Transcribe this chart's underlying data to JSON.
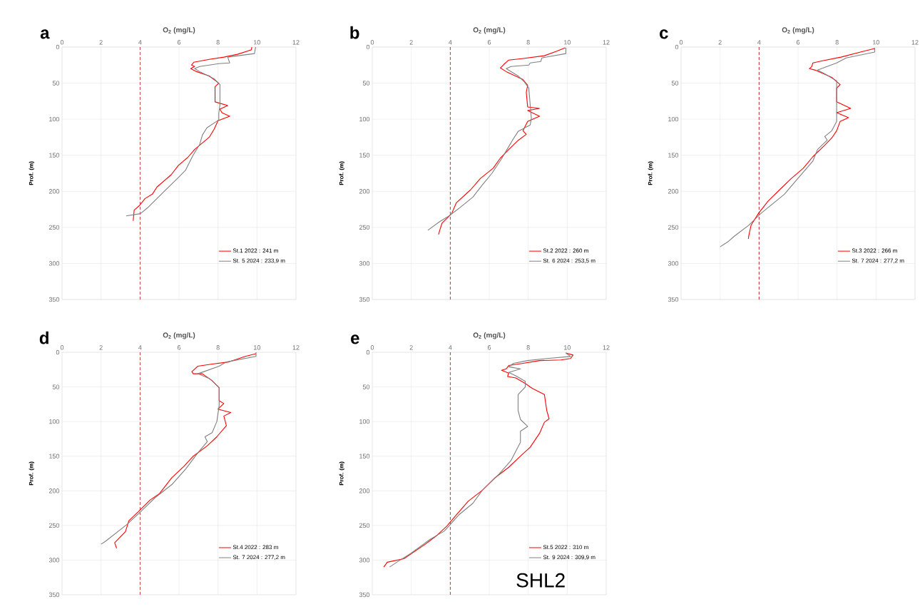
{
  "chart_data": [
    {
      "type": "line",
      "title": "a",
      "xlabel": "O$_{2}$ (mg/L)",
      "ylabel": "Prof. (m)",
      "xlim": [
        0,
        12
      ],
      "xticks": [
        0,
        2,
        4,
        6,
        8,
        10,
        12
      ],
      "ylim": [
        350,
        0
      ],
      "yticks": [
        0,
        50,
        100,
        150,
        200,
        250,
        300,
        350
      ],
      "grid": true,
      "legend": "bottom right",
      "ref_lines": [
        {
          "axis": "x",
          "value": 4,
          "color": "#c0282d",
          "line_style": "dashed"
        }
      ],
      "series": [
        {
          "name": "St.1 2022 : 241 m",
          "color": "#ff0000",
          "x": [
            9.74,
            9.7,
            9.0,
            8.3,
            7.55,
            6.76,
            6.64,
            6.8,
            6.6,
            6.9,
            7.55,
            8.04,
            7.85,
            7.85,
            8.5,
            8.1,
            8.2,
            8.6,
            8.0,
            7.8,
            7.55,
            6.8,
            6.45,
            5.97,
            5.6,
            4.87,
            4.63,
            4.26,
            3.96,
            3.7,
            3.65
          ],
          "values": [
            0,
            4,
            10,
            14,
            17,
            21,
            25,
            27,
            30,
            34,
            40,
            50,
            55,
            76,
            81,
            86,
            91,
            96,
            102,
            114,
            125,
            142,
            153,
            164,
            177,
            194,
            204,
            210,
            220,
            226,
            241
          ]
        },
        {
          "name": "St. 5 2024 : 233,9 m",
          "color": "#808080",
          "x": [
            9.93,
            9.87,
            8.5,
            8.6,
            8.04,
            7.06,
            6.8,
            7.06,
            7.8,
            8.1,
            8.1,
            8.04,
            8.04,
            7.43,
            7.2,
            7.06,
            6.7,
            6.33,
            5.85,
            5.24,
            4.38,
            4.02,
            3.29
          ],
          "values": [
            0,
            9,
            14,
            22,
            23,
            27,
            30,
            34,
            44,
            52,
            80,
            92,
            101,
            112,
            122,
            135,
            151,
            171,
            184,
            200,
            223,
            231,
            234
          ]
        }
      ]
    },
    {
      "type": "line",
      "title": "b",
      "xlabel": "O$_{2}$ (mg/L)",
      "ylabel": "Prof. (m)",
      "xlim": [
        0,
        12
      ],
      "xticks": [
        0,
        2,
        4,
        6,
        8,
        10,
        12
      ],
      "ylim": [
        350,
        0
      ],
      "yticks": [
        0,
        50,
        100,
        150,
        200,
        250,
        300,
        350
      ],
      "grid": true,
      "legend": "bottom right",
      "ref_lines": [
        {
          "axis": "x",
          "value": 4,
          "color": "#c0282d",
          "line_style": "dashed"
        }
      ],
      "series": [
        {
          "name": "St.2 2022 :  260 m",
          "color": "#ff0000",
          "x": [
            9.9,
            9.44,
            8.83,
            7.67,
            7.0,
            6.75,
            6.57,
            6.87,
            7.73,
            7.97,
            7.9,
            7.97,
            8.58,
            7.97,
            8.58,
            7.97,
            7.73,
            7.9,
            7.5,
            7.0,
            6.57,
            6.2,
            5.55,
            5.04,
            4.31,
            4.07,
            3.58,
            3.46,
            3.4
          ],
          "values": [
            1,
            6,
            12,
            16,
            18,
            24,
            29,
            34,
            45,
            53,
            63,
            83,
            85,
            88,
            96,
            103,
            116,
            121,
            129,
            142,
            154,
            168,
            182,
            198,
            216,
            231,
            244,
            254,
            260
          ]
        },
        {
          "name": "St. 6 2024 : 253,5 m",
          "color": "#808080",
          "x": [
            9.93,
            9.93,
            8.7,
            8.64,
            8.1,
            8.03,
            7.12,
            6.87,
            7.48,
            7.79,
            8.03,
            8.1,
            8.16,
            8.1,
            7.48,
            7.24,
            6.87,
            6.63,
            6.14,
            5.65,
            5.16,
            4.43,
            3.94,
            3.46,
            2.85
          ],
          "values": [
            1,
            9,
            15,
            20,
            22,
            25,
            27,
            30,
            40,
            48,
            57,
            80,
            99,
            108,
            117,
            127,
            144,
            155,
            175,
            191,
            208,
            224,
            234,
            242,
            254
          ]
        }
      ]
    },
    {
      "type": "line",
      "title": "c",
      "xlabel": "O$_{2}$ (mg/L)",
      "ylabel": "Prof. (m)",
      "xlim": [
        0,
        12
      ],
      "xticks": [
        0,
        2,
        4,
        6,
        8,
        10,
        12
      ],
      "ylim": [
        350,
        0
      ],
      "yticks": [
        0,
        50,
        100,
        150,
        200,
        250,
        300,
        350
      ],
      "grid": true,
      "legend": "bottom right",
      "ref_lines": [
        {
          "axis": "x",
          "value": 4,
          "color": "#c0282d",
          "line_style": "dashed"
        }
      ],
      "series": [
        {
          "name": "St.3 2022 : 266 m",
          "color": "#ff0000",
          "x": [
            9.93,
            9.2,
            8.2,
            7.25,
            6.76,
            6.7,
            6.58,
            6.88,
            7.73,
            8.16,
            7.98,
            7.98,
            8.7,
            7.98,
            8.59,
            8.16,
            7.98,
            7.73,
            7.37,
            6.76,
            6.27,
            5.66,
            5.05,
            4.45,
            3.96,
            3.59,
            3.47,
            3.45
          ],
          "values": [
            2,
            7,
            14,
            19,
            22,
            27,
            30,
            32,
            42,
            52,
            57,
            76,
            85,
            91,
            98,
            103,
            116,
            126,
            136,
            152,
            168,
            182,
            198,
            214,
            231,
            247,
            262,
            266
          ]
        },
        {
          "name": "St. 7 2024 : 277,2 m",
          "color": "#808080",
          "x": [
            9.93,
            9.93,
            8.47,
            7.98,
            7.0,
            7.37,
            7.98,
            7.98,
            7.73,
            7.37,
            7.5,
            7.0,
            6.76,
            5.9,
            5.3,
            4.08,
            3.47,
            2.74,
            2.4,
            2.0
          ],
          "values": [
            1,
            7,
            15,
            22,
            32,
            37,
            47,
            103,
            116,
            124,
            129,
            142,
            158,
            185,
            204,
            231,
            247,
            262,
            270,
            277
          ]
        }
      ]
    },
    {
      "type": "line",
      "title": "d",
      "xlabel": "O$_{2}$ (mg/L)",
      "ylabel": "Prof. (m)",
      "xlim": [
        0,
        12
      ],
      "xticks": [
        0,
        2,
        4,
        6,
        8,
        10,
        12
      ],
      "ylim": [
        350,
        0
      ],
      "yticks": [
        0,
        50,
        100,
        150,
        200,
        250,
        300,
        350
      ],
      "grid": true,
      "legend": "bottom right",
      "ref_lines": [
        {
          "axis": "x",
          "value": 4,
          "color": "#c0282d",
          "line_style": "dashed"
        }
      ],
      "series": [
        {
          "name": "St.4 2022 : 283 m",
          "color": "#ff0000",
          "x": [
            9.95,
            9.4,
            8.55,
            7.7,
            6.97,
            6.66,
            6.73,
            7.2,
            7.7,
            8.06,
            8.06,
            8.3,
            8.0,
            8.66,
            8.3,
            8.43,
            7.94,
            7.45,
            6.73,
            6.24,
            5.63,
            5.0,
            4.53,
            3.92,
            3.43,
            3.25,
            2.7,
            2.8
          ],
          "values": [
            2,
            6,
            14,
            17,
            20,
            28,
            31,
            31,
            41,
            51,
            70,
            74,
            82,
            87,
            92,
            106,
            122,
            135,
            150,
            165,
            181,
            204,
            213,
            230,
            243,
            259,
            275,
            283
          ]
        },
        {
          "name": "St. 7 2024 : 277,2 m",
          "color": "#808080",
          "x": [
            9.95,
            9.95,
            8.43,
            8.06,
            6.97,
            7.57,
            8.06,
            8.06,
            7.94,
            7.7,
            7.33,
            7.45,
            6.97,
            6.36,
            5.63,
            4.77,
            4.04,
            3.31,
            2.22,
            2.0
          ],
          "values": [
            0,
            6,
            14,
            20,
            31,
            38,
            51,
            77,
            100,
            116,
            122,
            129,
            145,
            168,
            191,
            210,
            230,
            249,
            273,
            277
          ]
        }
      ]
    },
    {
      "type": "line",
      "title": "e",
      "xlabel": "O$_{2}$ (mg/L)",
      "ylabel": "Prof. (m)",
      "xlim": [
        0,
        12
      ],
      "xticks": [
        0,
        2,
        4,
        6,
        8,
        10,
        12
      ],
      "ylim": [
        350,
        0
      ],
      "yticks": [
        0,
        50,
        100,
        150,
        200,
        250,
        300,
        350
      ],
      "grid": true,
      "legend": "bottom right",
      "annotations": [
        "SHL2"
      ],
      "ref_lines": [
        {
          "axis": "x",
          "value": 4,
          "color": "#c0282d",
          "line_style": "dashed"
        }
      ],
      "series": [
        {
          "name": "St.5 2022 : 310 m",
          "color": "#ff0000",
          "x": [
            9.93,
            10.3,
            10.17,
            9.68,
            8.58,
            7.73,
            7.0,
            6.87,
            6.63,
            7.0,
            6.94,
            7.36,
            7.85,
            8.2,
            8.83,
            8.95,
            9.07,
            8.83,
            8.58,
            8.1,
            7.6,
            7.0,
            6.26,
            5.65,
            4.92,
            4.3,
            3.82,
            3.33,
            2.72,
            1.62,
            0.77,
            0.59
          ],
          "values": [
            1,
            4,
            9,
            11,
            12,
            16,
            19,
            24,
            26,
            30,
            35,
            37,
            45,
            52,
            61,
            84,
            96,
            101,
            117,
            137,
            150,
            166,
            182,
            199,
            215,
            235,
            251,
            264,
            277,
            298,
            303,
            310
          ]
        },
        {
          "name": "St. 9 2024 : 309,9 m",
          "color": "#808080",
          "x": [
            9.93,
            10.17,
            8.95,
            7.97,
            7.24,
            7.0,
            7.6,
            7.0,
            7.36,
            7.85,
            7.85,
            7.48,
            7.48,
            7.6,
            7.97,
            7.6,
            7.6,
            7.12,
            6.5,
            5.65,
            5.16,
            4.43,
            3.7,
            2.97,
            1.99,
            1.26,
            0.89
          ],
          "values": [
            1,
            6,
            9,
            12,
            16,
            21,
            24,
            29,
            34,
            42,
            50,
            61,
            84,
            97,
            107,
            114,
            130,
            156,
            176,
            199,
            218,
            235,
            258,
            270,
            290,
            303,
            310
          ]
        }
      ]
    }
  ]
}
